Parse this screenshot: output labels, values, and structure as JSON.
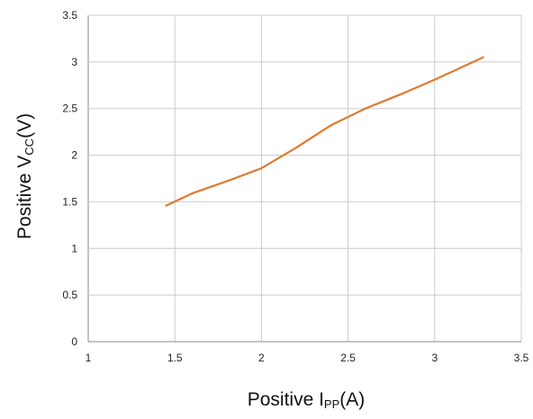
{
  "chart_data": {
    "type": "line",
    "title": "",
    "xlabel": {
      "main": "Positive I",
      "sub": "PP",
      "unit": "(A)"
    },
    "ylabel": {
      "main": "Positive V",
      "sub": "CC",
      "unit": "(V)"
    },
    "xlim": [
      1,
      3.5
    ],
    "ylim": [
      0,
      3.5
    ],
    "xticks": [
      1,
      1.5,
      2,
      2.5,
      3,
      3.5
    ],
    "yticks": [
      0,
      0.5,
      1,
      1.5,
      2,
      2.5,
      3,
      3.5
    ],
    "xtick_labels": [
      "1",
      "1.5",
      "2",
      "2.5",
      "3",
      "3.5"
    ],
    "ytick_labels": [
      "0",
      "0.5",
      "1",
      "1.5",
      "2",
      "2.5",
      "3",
      "3.5"
    ],
    "grid": true,
    "colors": {
      "line": "#e07a2e",
      "grid": "#cccccc",
      "axis": "#888888"
    },
    "series": [
      {
        "x": [
          1.45,
          1.6,
          1.8,
          2.0,
          2.2,
          2.4,
          2.6,
          2.8,
          3.0,
          3.2,
          3.28
        ],
        "y": [
          1.46,
          1.59,
          1.72,
          1.86,
          2.08,
          2.32,
          2.5,
          2.65,
          2.81,
          2.98,
          3.05
        ]
      }
    ]
  }
}
